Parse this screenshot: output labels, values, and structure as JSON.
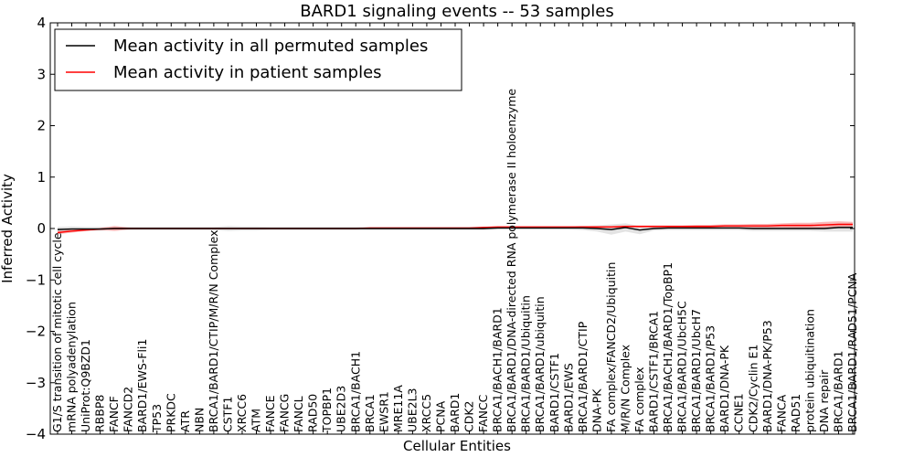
{
  "chart_data": {
    "type": "line",
    "title": "BARD1 signaling events -- 53 samples",
    "xlabel": "Cellular Entities",
    "ylabel": "Inferred Activity",
    "ylim": [
      -4,
      4
    ],
    "yticks": [
      "−4",
      "−3",
      "−2",
      "−1",
      "0",
      "1",
      "2",
      "3",
      "4"
    ],
    "legend_position": "upper-left",
    "colors": {
      "permuted_line": "#000000",
      "patient_line": "#ff0000",
      "patient_band": "#f7a0a0",
      "permuted_band": "#cccccc"
    },
    "categories": [
      "G1/S transition of mitotic cell cycle",
      "mRNA polyadenylation",
      "UniProt:Q9BZD1",
      "RBBP8",
      "FANCF",
      "FANCD2",
      "BARD1/EWS-Fli1",
      "TP53",
      "PRKDC",
      "ATR",
      "NBN",
      "BRCA1/BARD1/CTIP/M/R/N Complex",
      "CSTF1",
      "XRCC6",
      "ATM",
      "FANCE",
      "FANCG",
      "FANCL",
      "RAD50",
      "TOPBP1",
      "UBE2D3",
      "BRCA1/BACH1",
      "BRCA1",
      "EWSR1",
      "MRE11A",
      "UBE2L3",
      "XRCC5",
      "PCNA",
      "BARD1",
      "CDK2",
      "FANCC",
      "BRCA1/BACH1/BARD1",
      "BRCA1/BARD1/DNA-directed RNA polymerase II holoenzyme",
      "BRCA1/BARD1/Ubiquitin",
      "BRCA1/BARD1/ubiquitin",
      "BARD1/CSTF1",
      "BARD1/EWS",
      "BRCA1/BARD1/CTIP",
      "DNA-PK",
      "FA complex/FANCD2/Ubiquitin",
      "M/R/N Complex",
      "FA complex",
      "BARD1/CSTF1/BRCA1",
      "BRCA1/BACH1/BARD1/TopBP1",
      "BRCA1/BARD1/UbcH5C",
      "BRCA1/BARD1/UbcH7",
      "BRCA1/BARD1/P53",
      "BARD1/DNA-PK",
      "CCNE1",
      "CDK2/Cyclin E1",
      "BARD1/DNA-PK/P53",
      "FANCA",
      "RAD51",
      "protein ubiquitination",
      "DNA repair",
      "BRCA1/BARD1",
      "BRCA1/BARD1/RAD51/PCNA"
    ],
    "series": [
      {
        "name": "Mean activity in all permuted samples",
        "values": [
          -0.02,
          -0.01,
          -0.01,
          -0.01,
          0.0,
          0.0,
          0.0,
          0.0,
          0.0,
          0.0,
          0.0,
          0.0,
          0.0,
          0.0,
          0.0,
          0.0,
          0.0,
          0.0,
          0.0,
          0.0,
          0.0,
          0.0,
          0.0,
          0.0,
          0.0,
          0.0,
          0.0,
          0.0,
          0.0,
          0.0,
          0.0,
          0.01,
          0.01,
          0.01,
          0.01,
          0.01,
          0.01,
          0.01,
          0.0,
          -0.02,
          0.02,
          -0.03,
          0.0,
          0.01,
          0.01,
          0.01,
          0.01,
          0.01,
          0.01,
          0.0,
          0.0,
          0.0,
          0.0,
          0.0,
          0.0,
          0.02,
          0.02
        ],
        "band": [
          0.05,
          0.05,
          0.04,
          0.04,
          0.03,
          0.03,
          0.03,
          0.03,
          0.03,
          0.03,
          0.03,
          0.03,
          0.05,
          0.04,
          0.04,
          0.03,
          0.03,
          0.03,
          0.03,
          0.03,
          0.03,
          0.03,
          0.03,
          0.03,
          0.03,
          0.03,
          0.03,
          0.03,
          0.03,
          0.03,
          0.03,
          0.03,
          0.03,
          0.03,
          0.03,
          0.03,
          0.03,
          0.04,
          0.06,
          0.1,
          0.08,
          0.08,
          0.04,
          0.04,
          0.04,
          0.04,
          0.04,
          0.04,
          0.04,
          0.05,
          0.05,
          0.05,
          0.05,
          0.05,
          0.06,
          0.08,
          0.08
        ]
      },
      {
        "name": "Mean activity in patient samples",
        "values": [
          -0.08,
          -0.05,
          -0.03,
          -0.01,
          0.0,
          0.0,
          0.0,
          0.0,
          0.0,
          0.0,
          0.0,
          0.0,
          0.0,
          0.0,
          0.0,
          0.0,
          0.0,
          0.0,
          0.0,
          0.0,
          0.0,
          0.0,
          0.01,
          0.01,
          0.01,
          0.01,
          0.01,
          0.01,
          0.01,
          0.01,
          0.02,
          0.03,
          0.03,
          0.03,
          0.03,
          0.03,
          0.03,
          0.03,
          0.03,
          0.03,
          0.04,
          0.04,
          0.04,
          0.04,
          0.04,
          0.04,
          0.04,
          0.05,
          0.05,
          0.05,
          0.05,
          0.06,
          0.06,
          0.06,
          0.07,
          0.08,
          0.08
        ],
        "band": [
          0.03,
          0.03,
          0.02,
          0.02,
          0.05,
          0.02,
          0.01,
          0.01,
          0.01,
          0.01,
          0.01,
          0.01,
          0.01,
          0.01,
          0.01,
          0.01,
          0.01,
          0.01,
          0.01,
          0.01,
          0.01,
          0.01,
          0.01,
          0.01,
          0.01,
          0.01,
          0.01,
          0.01,
          0.01,
          0.01,
          0.01,
          0.01,
          0.01,
          0.01,
          0.01,
          0.01,
          0.01,
          0.02,
          0.02,
          0.02,
          0.02,
          0.02,
          0.02,
          0.02,
          0.02,
          0.03,
          0.03,
          0.03,
          0.03,
          0.04,
          0.04,
          0.04,
          0.05,
          0.05,
          0.06,
          0.06,
          0.05
        ]
      }
    ]
  }
}
